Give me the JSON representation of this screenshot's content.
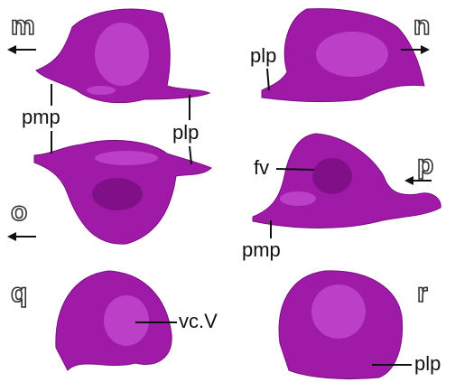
{
  "panel_letters": [
    "m",
    "n",
    "o",
    "p",
    "q",
    "r"
  ],
  "labels": [
    "plp",
    "pmp",
    "plp",
    "fv",
    "pmp",
    "vc.V",
    "plp"
  ]
}
